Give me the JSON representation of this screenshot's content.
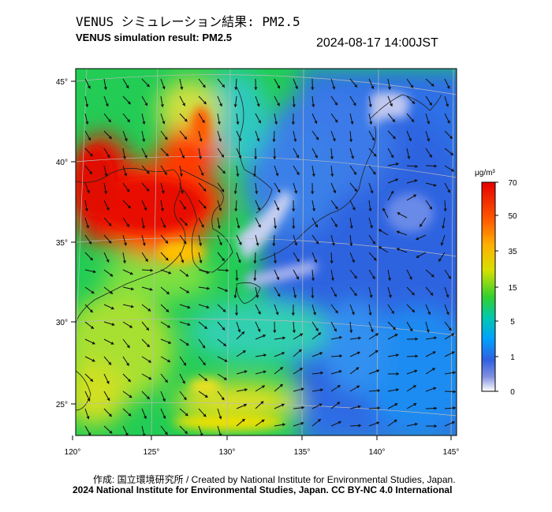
{
  "header": {
    "title_jp": "VENUS シミュレーション結果: PM2.5",
    "title_en": "VENUS simulation result: PM2.5",
    "timestamp": "2024-08-17 14:00JST"
  },
  "map": {
    "lon_ticks": [
      "120°",
      "125°",
      "130°",
      "135°",
      "140°",
      "145°"
    ],
    "lat_ticks": [
      "45°",
      "40°",
      "35°",
      "30°",
      "25°"
    ],
    "lon_range": [
      120,
      145
    ],
    "lat_range": [
      23,
      46
    ]
  },
  "colorbar": {
    "unit": "μg/m³",
    "labels": [
      "70",
      "50",
      "35",
      "15",
      "5",
      "1",
      "0"
    ],
    "colors": [
      "#e60000",
      "#ff4d00",
      "#ffb000",
      "#c8e000",
      "#30d030",
      "#00c8a0",
      "#00a0ff",
      "#3060e0",
      "#7080e0",
      "#c0c8f0",
      "#ffffff"
    ]
  },
  "footer": {
    "credit_line1": "作成: 国立環境研究所 / Created by National Institute for Environmental Studies, Japan.",
    "credit_line2": "2024 National Institute for Environmental Studies, Japan. CC BY-NC 4.0 International"
  }
}
